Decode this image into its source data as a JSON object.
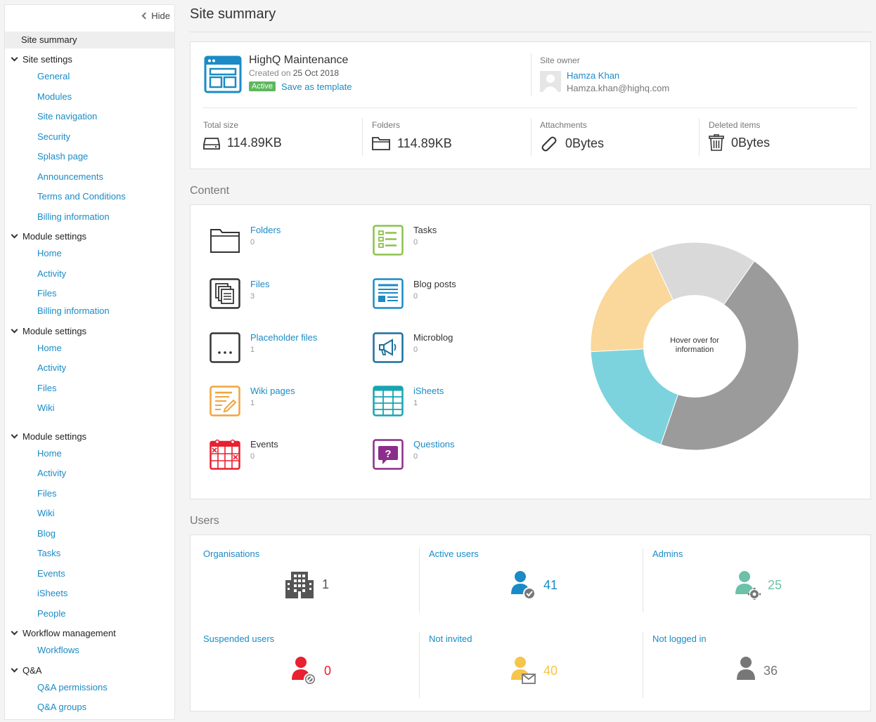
{
  "sidebar": {
    "hide_label": "Hide",
    "active_item": "Site summary",
    "sections": [
      {
        "label": "Site settings",
        "items": [
          "General",
          "Modules",
          "Site navigation",
          "Security",
          "Splash page",
          "Announcements",
          "Terms and Conditions",
          "Billing information"
        ]
      },
      {
        "label": "Module settings",
        "items": [
          "Home",
          "Activity",
          "Files",
          "Billing information"
        ]
      },
      {
        "label": "Module settings",
        "items": [
          "Home",
          "Activity",
          "Files",
          "Wiki"
        ]
      },
      {
        "label": "Module settings",
        "items": [
          "Home",
          "Activity",
          "Files",
          "Wiki",
          "Blog",
          "Tasks",
          "Events",
          "iSheets",
          "People"
        ]
      },
      {
        "label": "Workflow management",
        "items": [
          "Workflows"
        ]
      },
      {
        "label": "Q&A",
        "items": [
          "Q&A permissions",
          "Q&A groups"
        ]
      }
    ]
  },
  "page": {
    "title": "Site summary"
  },
  "site": {
    "name": "HighQ Maintenance",
    "created_prefix": "Created on",
    "created_date": "25 Oct 2018",
    "status": "Active",
    "save_template": "Save as template",
    "owner_label": "Site owner",
    "owner_name": "Hamza Khan",
    "owner_email": "Hamza.khan@highq.com"
  },
  "stats": [
    {
      "label": "Total size",
      "value": "114.89KB",
      "icon": "drive-icon"
    },
    {
      "label": "Folders",
      "value": "114.89KB",
      "icon": "folder-icon"
    },
    {
      "label": "Attachments",
      "value": "0Bytes",
      "icon": "paperclip-icon"
    },
    {
      "label": "Deleted items",
      "value": "0Bytes",
      "icon": "trash-icon"
    }
  ],
  "content": {
    "heading": "Content",
    "items": [
      {
        "label": "Folders",
        "count": "0",
        "link": true,
        "icon": "folder-icon"
      },
      {
        "label": "Tasks",
        "count": "0",
        "link": false,
        "icon": "tasks-icon"
      },
      {
        "label": "Files",
        "count": "3",
        "link": true,
        "icon": "files-icon"
      },
      {
        "label": "Blog posts",
        "count": "0",
        "link": false,
        "icon": "blog-icon"
      },
      {
        "label": "Placeholder files",
        "count": "1",
        "link": true,
        "icon": "placeholder-icon"
      },
      {
        "label": "Microblog",
        "count": "0",
        "link": false,
        "icon": "megaphone-icon"
      },
      {
        "label": "Wiki pages",
        "count": "1",
        "link": true,
        "icon": "wiki-icon"
      },
      {
        "label": "iSheets",
        "count": "1",
        "link": true,
        "icon": "isheets-icon"
      },
      {
        "label": "Events",
        "count": "0",
        "link": false,
        "icon": "calendar-icon"
      },
      {
        "label": "Questions",
        "count": "0",
        "link": true,
        "icon": "question-icon"
      }
    ],
    "donut_center_line1": "Hover over for",
    "donut_center_line2": "information",
    "donut_slices": [
      {
        "value": 41,
        "color": "#9b9b9b"
      },
      {
        "value": 17,
        "color": "#7dd3dd"
      },
      {
        "value": 17,
        "color": "#fad79a"
      },
      {
        "value": 15,
        "color": "#d9d9d9"
      }
    ]
  },
  "users": {
    "heading": "Users",
    "items": [
      {
        "label": "Organisations",
        "value": "1",
        "color": "#555555",
        "icon": "building-icon"
      },
      {
        "label": "Active users",
        "value": "41",
        "color": "#1a8bc6",
        "icon": "active-user-icon"
      },
      {
        "label": "Admins",
        "value": "25",
        "color": "#6cc1a8",
        "icon": "admin-user-icon"
      },
      {
        "label": "Suspended users",
        "value": "0",
        "color": "#e8202f",
        "icon": "suspended-user-icon"
      },
      {
        "label": "Not invited",
        "value": "40",
        "color": "#f6c54b",
        "icon": "not-invited-user-icon"
      },
      {
        "label": "Not logged in",
        "value": "36",
        "color": "#777777",
        "icon": "not-logged-in-user-icon"
      }
    ]
  }
}
